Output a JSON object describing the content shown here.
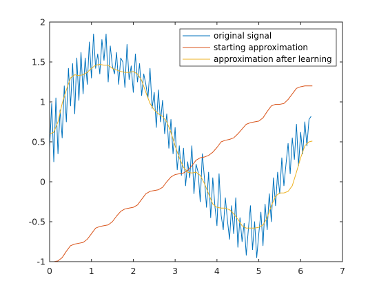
{
  "chart_data": {
    "type": "line",
    "title": "",
    "xlabel": "",
    "ylabel": "",
    "xlim": [
      0,
      7
    ],
    "ylim": [
      -1,
      2
    ],
    "xticks": [
      0,
      1,
      2,
      3,
      4,
      5,
      6,
      7
    ],
    "yticks": [
      -1,
      -0.5,
      0,
      0.5,
      1,
      1.5,
      2
    ],
    "x_tick_labels": [
      "0",
      "1",
      "2",
      "3",
      "4",
      "5",
      "6",
      "7"
    ],
    "y_tick_labels": [
      "-1",
      "-0.5",
      "0",
      "0.5",
      "1",
      "1.5",
      "2"
    ],
    "grid": false,
    "box": true,
    "legend_location": "top-right",
    "series": [
      {
        "name": "original signal",
        "color": "#0072bd",
        "x": [
          0,
          0.05,
          0.1,
          0.15,
          0.2,
          0.25,
          0.3,
          0.35,
          0.4,
          0.45,
          0.5,
          0.55,
          0.6,
          0.65,
          0.7,
          0.75,
          0.8,
          0.85,
          0.9,
          0.95,
          1,
          1.05,
          1.1,
          1.15,
          1.2,
          1.25,
          1.3,
          1.35,
          1.4,
          1.45,
          1.5,
          1.55,
          1.6,
          1.65,
          1.7,
          1.75,
          1.8,
          1.85,
          1.9,
          1.95,
          2,
          2.05,
          2.1,
          2.15,
          2.2,
          2.25,
          2.3,
          2.35,
          2.4,
          2.45,
          2.5,
          2.55,
          2.6,
          2.65,
          2.7,
          2.75,
          2.8,
          2.85,
          2.9,
          2.95,
          3,
          3.05,
          3.1,
          3.15,
          3.2,
          3.25,
          3.3,
          3.35,
          3.4,
          3.45,
          3.5,
          3.55,
          3.6,
          3.65,
          3.7,
          3.75,
          3.8,
          3.85,
          3.9,
          3.95,
          4,
          4.05,
          4.1,
          4.15,
          4.2,
          4.25,
          4.3,
          4.35,
          4.4,
          4.45,
          4.5,
          4.55,
          4.6,
          4.65,
          4.7,
          4.75,
          4.8,
          4.85,
          4.9,
          4.95,
          5,
          5.05,
          5.1,
          5.15,
          5.2,
          5.25,
          5.3,
          5.35,
          5.4,
          5.45,
          5.5,
          5.55,
          5.6,
          5.65,
          5.7,
          5.75,
          5.8,
          5.85,
          5.9,
          5.95,
          6,
          6.05,
          6.1,
          6.15,
          6.2,
          6.25
        ],
        "values": [
          0.42,
          0.98,
          0.25,
          1.05,
          0.35,
          0.9,
          0.55,
          1.2,
          0.75,
          1.42,
          0.95,
          1.48,
          0.85,
          1.55,
          1.02,
          1.62,
          1.1,
          1.55,
          1.22,
          1.75,
          1.3,
          1.85,
          1.42,
          1.6,
          1.35,
          1.78,
          1.52,
          1.85,
          1.25,
          1.7,
          1.45,
          1.35,
          1.62,
          1.22,
          1.55,
          1.5,
          1.18,
          1.72,
          1.28,
          1.45,
          1.12,
          1.6,
          1.25,
          1.48,
          1.08,
          1.35,
          1.22,
          1.05,
          1.42,
          0.92,
          1.12,
          0.68,
          1.15,
          0.75,
          1.02,
          0.6,
          0.85,
          0.42,
          0.78,
          0.35,
          0.68,
          0.15,
          0.45,
          0.08,
          0.42,
          -0.05,
          0.25,
          0.05,
          0.45,
          -0.15,
          0.22,
          0.12,
          -0.25,
          0.35,
          0.05,
          -0.32,
          0.12,
          -0.45,
          0.05,
          -0.3,
          -0.55,
          0.1,
          -0.42,
          -0.6,
          -0.2,
          -0.48,
          -0.72,
          -0.3,
          -0.65,
          -0.2,
          -0.82,
          -0.45,
          -0.75,
          -0.52,
          -0.92,
          -0.6,
          -0.3,
          -0.85,
          -0.5,
          -0.95,
          -0.65,
          -0.38,
          -0.8,
          -0.28,
          -0.6,
          -0.15,
          -0.5,
          0.05,
          -0.3,
          0.12,
          -0.15,
          0.3,
          -0.05,
          0.22,
          0.48,
          0.1,
          0.55,
          0.28,
          0.72,
          0.2,
          0.62,
          0.35,
          0.75,
          0.45,
          0.78,
          0.82
        ]
      },
      {
        "name": "starting approximation",
        "color": "#d95319",
        "x": [
          0,
          0.1,
          0.2,
          0.3,
          0.4,
          0.5,
          0.6,
          0.7,
          0.8,
          0.9,
          1,
          1.1,
          1.2,
          1.3,
          1.4,
          1.5,
          1.6,
          1.7,
          1.8,
          1.9,
          2,
          2.1,
          2.2,
          2.3,
          2.4,
          2.5,
          2.6,
          2.7,
          2.8,
          2.9,
          3,
          3.1,
          3.2,
          3.3,
          3.4,
          3.5,
          3.6,
          3.7,
          3.8,
          3.9,
          4,
          4.1,
          4.2,
          4.3,
          4.4,
          4.5,
          4.6,
          4.7,
          4.8,
          4.9,
          5,
          5.1,
          5.2,
          5.3,
          5.4,
          5.5,
          5.6,
          5.7,
          5.8,
          5.9,
          6,
          6.1,
          6.2,
          6.28
        ],
        "values": [
          -1,
          -1,
          -0.99,
          -0.95,
          -0.87,
          -0.8,
          -0.78,
          -0.77,
          -0.76,
          -0.72,
          -0.65,
          -0.58,
          -0.56,
          -0.55,
          -0.54,
          -0.5,
          -0.43,
          -0.37,
          -0.34,
          -0.33,
          -0.32,
          -0.29,
          -0.22,
          -0.15,
          -0.12,
          -0.11,
          -0.1,
          -0.07,
          0,
          0.06,
          0.09,
          0.1,
          0.11,
          0.14,
          0.2,
          0.27,
          0.3,
          0.31,
          0.33,
          0.37,
          0.43,
          0.5,
          0.52,
          0.53,
          0.55,
          0.6,
          0.66,
          0.72,
          0.74,
          0.75,
          0.76,
          0.8,
          0.88,
          0.95,
          0.97,
          0.97,
          0.98,
          1.03,
          1.1,
          1.17,
          1.19,
          1.2,
          1.2,
          1.2
        ]
      },
      {
        "name": "approximation after learning",
        "color": "#edb120",
        "x": [
          0,
          0.1,
          0.2,
          0.3,
          0.4,
          0.5,
          0.6,
          0.7,
          0.8,
          0.9,
          1,
          1.1,
          1.2,
          1.3,
          1.4,
          1.5,
          1.6,
          1.7,
          1.8,
          1.9,
          2,
          2.1,
          2.2,
          2.3,
          2.4,
          2.5,
          2.6,
          2.7,
          2.8,
          2.9,
          3,
          3.1,
          3.2,
          3.3,
          3.4,
          3.5,
          3.6,
          3.7,
          3.8,
          3.9,
          4,
          4.1,
          4.2,
          4.3,
          4.4,
          4.5,
          4.6,
          4.7,
          4.8,
          4.9,
          5,
          5.1,
          5.2,
          5.3,
          5.4,
          5.5,
          5.6,
          5.7,
          5.8,
          5.9,
          6,
          6.1,
          6.2,
          6.28
        ],
        "values": [
          0.6,
          0.62,
          0.75,
          0.98,
          1.15,
          1.3,
          1.34,
          1.33,
          1.34,
          1.37,
          1.42,
          1.46,
          1.47,
          1.46,
          1.46,
          1.42,
          1.4,
          1.38,
          1.37,
          1.37,
          1.38,
          1.35,
          1.27,
          1.12,
          0.98,
          0.9,
          0.85,
          0.82,
          0.75,
          0.62,
          0.45,
          0.3,
          0.18,
          0.12,
          0.11,
          0.12,
          0.08,
          -0.02,
          -0.15,
          -0.28,
          -0.32,
          -0.33,
          -0.33,
          -0.35,
          -0.4,
          -0.47,
          -0.55,
          -0.58,
          -0.58,
          -0.58,
          -0.57,
          -0.54,
          -0.45,
          -0.3,
          -0.18,
          -0.14,
          -0.14,
          -0.12,
          -0.05,
          0.12,
          0.3,
          0.45,
          0.5,
          0.51
        ]
      }
    ]
  }
}
